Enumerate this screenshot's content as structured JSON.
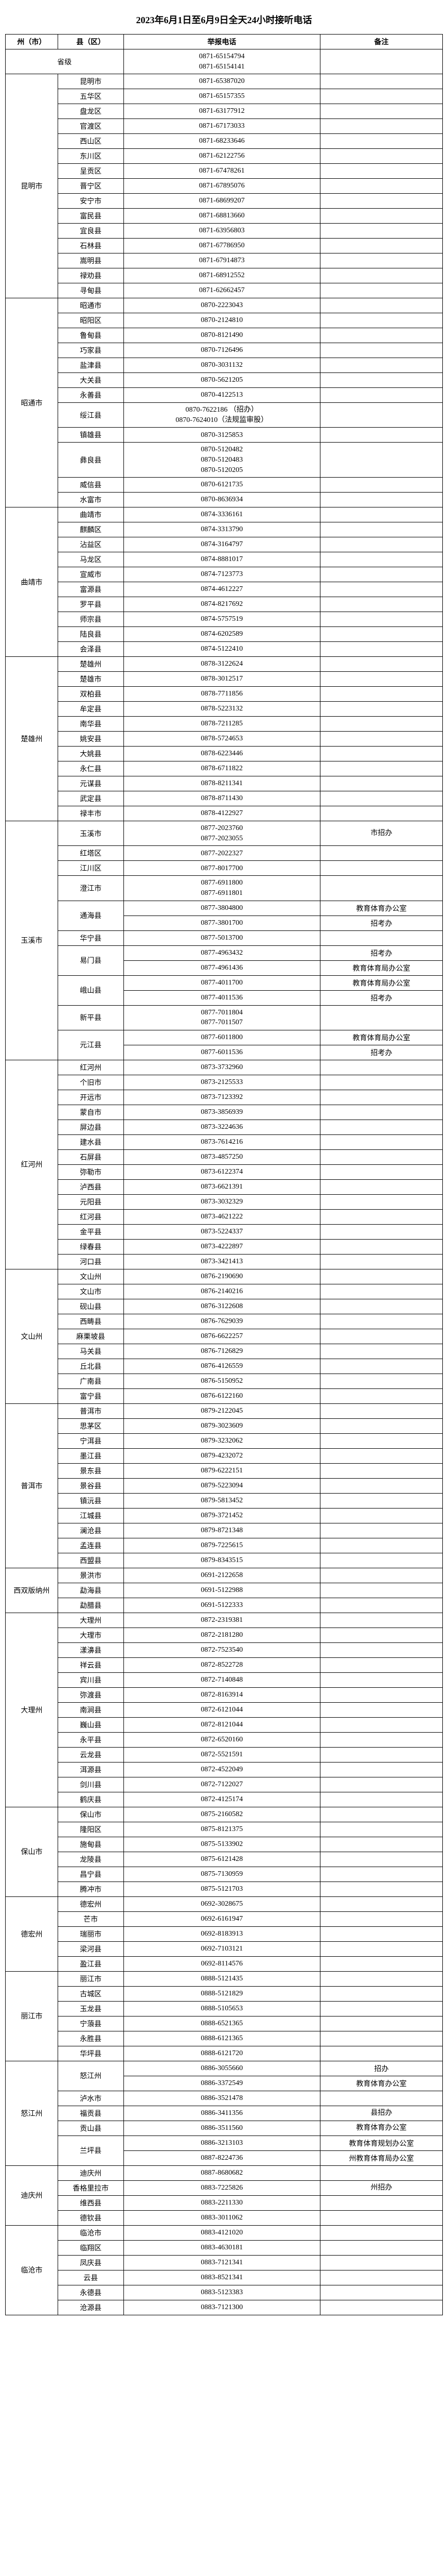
{
  "title": "2023年6月1日至6月9日全天24小时接听电话",
  "headers": {
    "prefecture": "州（市）",
    "county": "县（区）",
    "phone": "举报电话",
    "remark": "备注"
  },
  "provincial": {
    "label": "省级",
    "phones": [
      "0871-65154794",
      "0871-65154141"
    ]
  },
  "prefectures": [
    {
      "name": "昆明市",
      "rows": [
        {
          "county": "昆明市",
          "phone": "0871-65387020"
        },
        {
          "county": "五华区",
          "phone": "0871-65157355"
        },
        {
          "county": "盘龙区",
          "phone": "0871-63177912"
        },
        {
          "county": "官渡区",
          "phone": "0871-67173033"
        },
        {
          "county": "西山区",
          "phone": "0871-68233646"
        },
        {
          "county": "东川区",
          "phone": "0871-62122756"
        },
        {
          "county": "呈贡区",
          "phone": "0871-67478261"
        },
        {
          "county": "晋宁区",
          "phone": "0871-67895076"
        },
        {
          "county": "安宁市",
          "phone": "0871-68699207"
        },
        {
          "county": "富民县",
          "phone": "0871-68813660"
        },
        {
          "county": "宜良县",
          "phone": "0871-63956803"
        },
        {
          "county": "石林县",
          "phone": "0871-67786950"
        },
        {
          "county": "嵩明县",
          "phone": "0871-67914873"
        },
        {
          "county": "禄劝县",
          "phone": "0871-68912552"
        },
        {
          "county": "寻甸县",
          "phone": "0871-62662457"
        }
      ]
    },
    {
      "name": "昭通市",
      "rows": [
        {
          "county": "昭通市",
          "phone": "0870-2223043"
        },
        {
          "county": "昭阳区",
          "phone": "0870-2124810"
        },
        {
          "county": "鲁甸县",
          "phone": "0870-8121490"
        },
        {
          "county": "巧家县",
          "phone": "0870-7126496"
        },
        {
          "county": "盐津县",
          "phone": "0870-3031132"
        },
        {
          "county": "大关县",
          "phone": "0870-5621205"
        },
        {
          "county": "永善县",
          "phone": "0870-4122513"
        },
        {
          "county": "绥江县",
          "phone": "0870-7622186  （招办）\n0870-7624010（法规监审股）"
        },
        {
          "county": "镇雄县",
          "phone": "0870-3125853"
        },
        {
          "county": "彝良县",
          "phone": "0870-5120482\n0870-5120483\n0870-5120205"
        },
        {
          "county": "威信县",
          "phone": "0870-6121735"
        },
        {
          "county": "水富市",
          "phone": "0870-8636934"
        }
      ]
    },
    {
      "name": "曲靖市",
      "rows": [
        {
          "county": "曲靖市",
          "phone": "0874-3336161"
        },
        {
          "county": "麒麟区",
          "phone": "0874-3313790"
        },
        {
          "county": "沾益区",
          "phone": "0874-3164797"
        },
        {
          "county": "马龙区",
          "phone": "0874-8881017"
        },
        {
          "county": "宣威市",
          "phone": "0874-7123773"
        },
        {
          "county": "富源县",
          "phone": "0874-4612227"
        },
        {
          "county": "罗平县",
          "phone": "0874-8217692"
        },
        {
          "county": "师宗县",
          "phone": "0874-5757519"
        },
        {
          "county": "陆良县",
          "phone": "0874-6202589"
        },
        {
          "county": "会泽县",
          "phone": "0874-5122410"
        }
      ]
    },
    {
      "name": "楚雄州",
      "rows": [
        {
          "county": "楚雄州",
          "phone": "0878-3122624"
        },
        {
          "county": "楚雄市",
          "phone": "0878-3012517"
        },
        {
          "county": "双柏县",
          "phone": "0878-7711856"
        },
        {
          "county": "牟定县",
          "phone": "0878-5223132"
        },
        {
          "county": "南华县",
          "phone": "0878-7211285"
        },
        {
          "county": "姚安县",
          "phone": "0878-5724653"
        },
        {
          "county": "大姚县",
          "phone": "0878-6223446"
        },
        {
          "county": "永仁县",
          "phone": "0878-6711822"
        },
        {
          "county": "元谋县",
          "phone": "0878-8211341"
        },
        {
          "county": "武定县",
          "phone": "0878-8711430"
        },
        {
          "county": "禄丰市",
          "phone": "0878-4122927"
        }
      ]
    },
    {
      "name": "玉溪市",
      "rows": [
        {
          "county": "玉溪市",
          "phone": "0877-2023760\n0877-2023055",
          "remark": "市招办"
        },
        {
          "county": "红塔区",
          "phone": "0877-2022327"
        },
        {
          "county": "江川区",
          "phone": "0877-8017700"
        },
        {
          "county": "澄江市",
          "phone": "0877-6911800\n0877-6911801"
        },
        {
          "county": "通海县",
          "phone": "0877-3804800\n0877-3801700",
          "remark": "教育体育办公室\n招考办"
        },
        {
          "county": "华宁县",
          "phone": "0877-5013700"
        },
        {
          "county": "易门县",
          "phone": "0877-4963432\n0877-4961436",
          "remark": "招考办\n教育体育局办公室"
        },
        {
          "county": "峨山县",
          "phone": "0877-4011700\n0877-4011536",
          "remark": "教育体育局办公室\n招考办"
        },
        {
          "county": "新平县",
          "phone": "0877-7011804\n0877-7011507"
        },
        {
          "county": "元江县",
          "phone": "0877-6011800\n0877-6011536",
          "remark": "教育体育局办公室\n招考办"
        }
      ]
    },
    {
      "name": "红河州",
      "rows": [
        {
          "county": "红河州",
          "phone": "0873-3732960"
        },
        {
          "county": "个旧市",
          "phone": "0873-2125533"
        },
        {
          "county": "开远市",
          "phone": "0873-7123392"
        },
        {
          "county": "蒙自市",
          "phone": "0873-3856939"
        },
        {
          "county": "屏边县",
          "phone": "0873-3224636"
        },
        {
          "county": "建水县",
          "phone": "0873-7614216"
        },
        {
          "county": "石屏县",
          "phone": "0873-4857250"
        },
        {
          "county": "弥勒市",
          "phone": "0873-6122374"
        },
        {
          "county": "泸西县",
          "phone": "0873-6621391"
        },
        {
          "county": "元阳县",
          "phone": "0873-3032329"
        },
        {
          "county": "红河县",
          "phone": "0873-4621222"
        },
        {
          "county": "金平县",
          "phone": "0873-5224337"
        },
        {
          "county": "绿春县",
          "phone": "0873-4222897"
        },
        {
          "county": "河口县",
          "phone": "0873-3421413"
        }
      ]
    },
    {
      "name": "文山州",
      "rows": [
        {
          "county": "文山州",
          "phone": "0876-2190690"
        },
        {
          "county": "文山市",
          "phone": "0876-2140216"
        },
        {
          "county": "砚山县",
          "phone": "0876-3122608"
        },
        {
          "county": "西畴县",
          "phone": "0876-7629039"
        },
        {
          "county": "麻栗坡县",
          "phone": "0876-6622257"
        },
        {
          "county": "马关县",
          "phone": "0876-7126829"
        },
        {
          "county": "丘北县",
          "phone": "0876-4126559"
        },
        {
          "county": "广南县",
          "phone": "0876-5150952"
        },
        {
          "county": "富宁县",
          "phone": "0876-6122160"
        }
      ]
    },
    {
      "name": "普洱市",
      "rows": [
        {
          "county": "普洱市",
          "phone": "0879-2122045"
        },
        {
          "county": "思茅区",
          "phone": "0879-3023609"
        },
        {
          "county": "宁洱县",
          "phone": "0879-3232062"
        },
        {
          "county": "墨江县",
          "phone": "0879-4232072"
        },
        {
          "county": "景东县",
          "phone": "0879-6222151"
        },
        {
          "county": "景谷县",
          "phone": "0879-5223094"
        },
        {
          "county": "镇沅县",
          "phone": "0879-5813452"
        },
        {
          "county": "江城县",
          "phone": "0879-3721452"
        },
        {
          "county": "澜沧县",
          "phone": "0879-8721348"
        },
        {
          "county": "孟连县",
          "phone": "0879-7225615"
        },
        {
          "county": "西盟县",
          "phone": "0879-8343515"
        }
      ]
    },
    {
      "name": "西双版纳州",
      "rows": [
        {
          "county": "景洪市",
          "phone": "0691-2122658"
        },
        {
          "county": "勐海县",
          "phone": "0691-5122988"
        },
        {
          "county": "勐腊县",
          "phone": "0691-5122333"
        }
      ]
    },
    {
      "name": "大理州",
      "rows": [
        {
          "county": "大理州",
          "phone": "0872-2319381"
        },
        {
          "county": "大理市",
          "phone": "0872-2181280"
        },
        {
          "county": "漾濞县",
          "phone": "0872-7523540"
        },
        {
          "county": "祥云县",
          "phone": "0872-8522728"
        },
        {
          "county": "宾川县",
          "phone": "0872-7140848"
        },
        {
          "county": "弥渡县",
          "phone": "0872-8163914"
        },
        {
          "county": "南涧县",
          "phone": "0872-6121044"
        },
        {
          "county": "巍山县",
          "phone": "0872-8121044"
        },
        {
          "county": "永平县",
          "phone": "0872-6520160"
        },
        {
          "county": "云龙县",
          "phone": "0872-5521591"
        },
        {
          "county": "洱源县",
          "phone": "0872-4522049"
        },
        {
          "county": "剑川县",
          "phone": "0872-7122027"
        },
        {
          "county": "鹤庆县",
          "phone": "0872-4125174"
        }
      ]
    },
    {
      "name": "保山市",
      "rows": [
        {
          "county": "保山市",
          "phone": "0875-2160582"
        },
        {
          "county": "隆阳区",
          "phone": "0875-8121375"
        },
        {
          "county": "施甸县",
          "phone": "0875-5133902"
        },
        {
          "county": "龙陵县",
          "phone": "0875-6121428"
        },
        {
          "county": "昌宁县",
          "phone": "0875-7130959"
        },
        {
          "county": "腾冲市",
          "phone": "0875-5121703"
        }
      ]
    },
    {
      "name": "德宏州",
      "rows": [
        {
          "county": "德宏州",
          "phone": "0692-3028675"
        },
        {
          "county": "芒市",
          "phone": "0692-6161947"
        },
        {
          "county": "瑞丽市",
          "phone": "0692-8183913"
        },
        {
          "county": "梁河县",
          "phone": "0692-7103121"
        },
        {
          "county": "盈江县",
          "phone": "0692-8114576"
        }
      ]
    },
    {
      "name": "丽江市",
      "rows": [
        {
          "county": "丽江市",
          "phone": "0888-5121435"
        },
        {
          "county": "古城区",
          "phone": "0888-5121829"
        },
        {
          "county": "玉龙县",
          "phone": "0888-5105653"
        },
        {
          "county": "宁蒗县",
          "phone": "0888-6521365"
        },
        {
          "county": "永胜县",
          "phone": "0888-6121365"
        },
        {
          "county": "华坪县",
          "phone": "0888-6121720"
        }
      ]
    },
    {
      "name": "怒江州",
      "rows": [
        {
          "county": "怒江州",
          "phone": "0886-3055660\n0886-3372549",
          "remark": "招办\n教育体育办公室"
        },
        {
          "county": "泸水市",
          "phone": "0886-3521478",
          "remark": ""
        },
        {
          "county": "福贡县",
          "phone": "0886-3411356",
          "remark": "县招办"
        },
        {
          "county": "贡山县",
          "phone": "0886-3511560",
          "remark": "教育体育办公室"
        },
        {
          "county": "兰坪县",
          "phone": "0886-3213103\n0887-8224736",
          "remark": "教育体育规划办公室\n州教育体育局办公室"
        }
      ]
    },
    {
      "name": "迪庆州",
      "rows": [
        {
          "county": "迪庆州",
          "phone": "0887-8680682"
        },
        {
          "county": "香格里拉市",
          "phone": "0883-7225826",
          "remark": "州招办"
        },
        {
          "county": "维西县",
          "phone": "0883-2211330"
        },
        {
          "county": "德钦县",
          "phone": "0883-3011062"
        }
      ]
    },
    {
      "name": "临沧市",
      "rows": [
        {
          "county": "临沧市",
          "phone": "0883-4121020"
        },
        {
          "county": "临翔区",
          "phone": "0883-4630181"
        },
        {
          "county": "凤庆县",
          "phone": "0883-7121341"
        },
        {
          "county": "云县",
          "phone": "0883-8521341"
        },
        {
          "county": "永德县",
          "phone": "0883-5123383"
        },
        {
          "county": "沧源县",
          "phone": "0883-7121300"
        }
      ]
    }
  ]
}
